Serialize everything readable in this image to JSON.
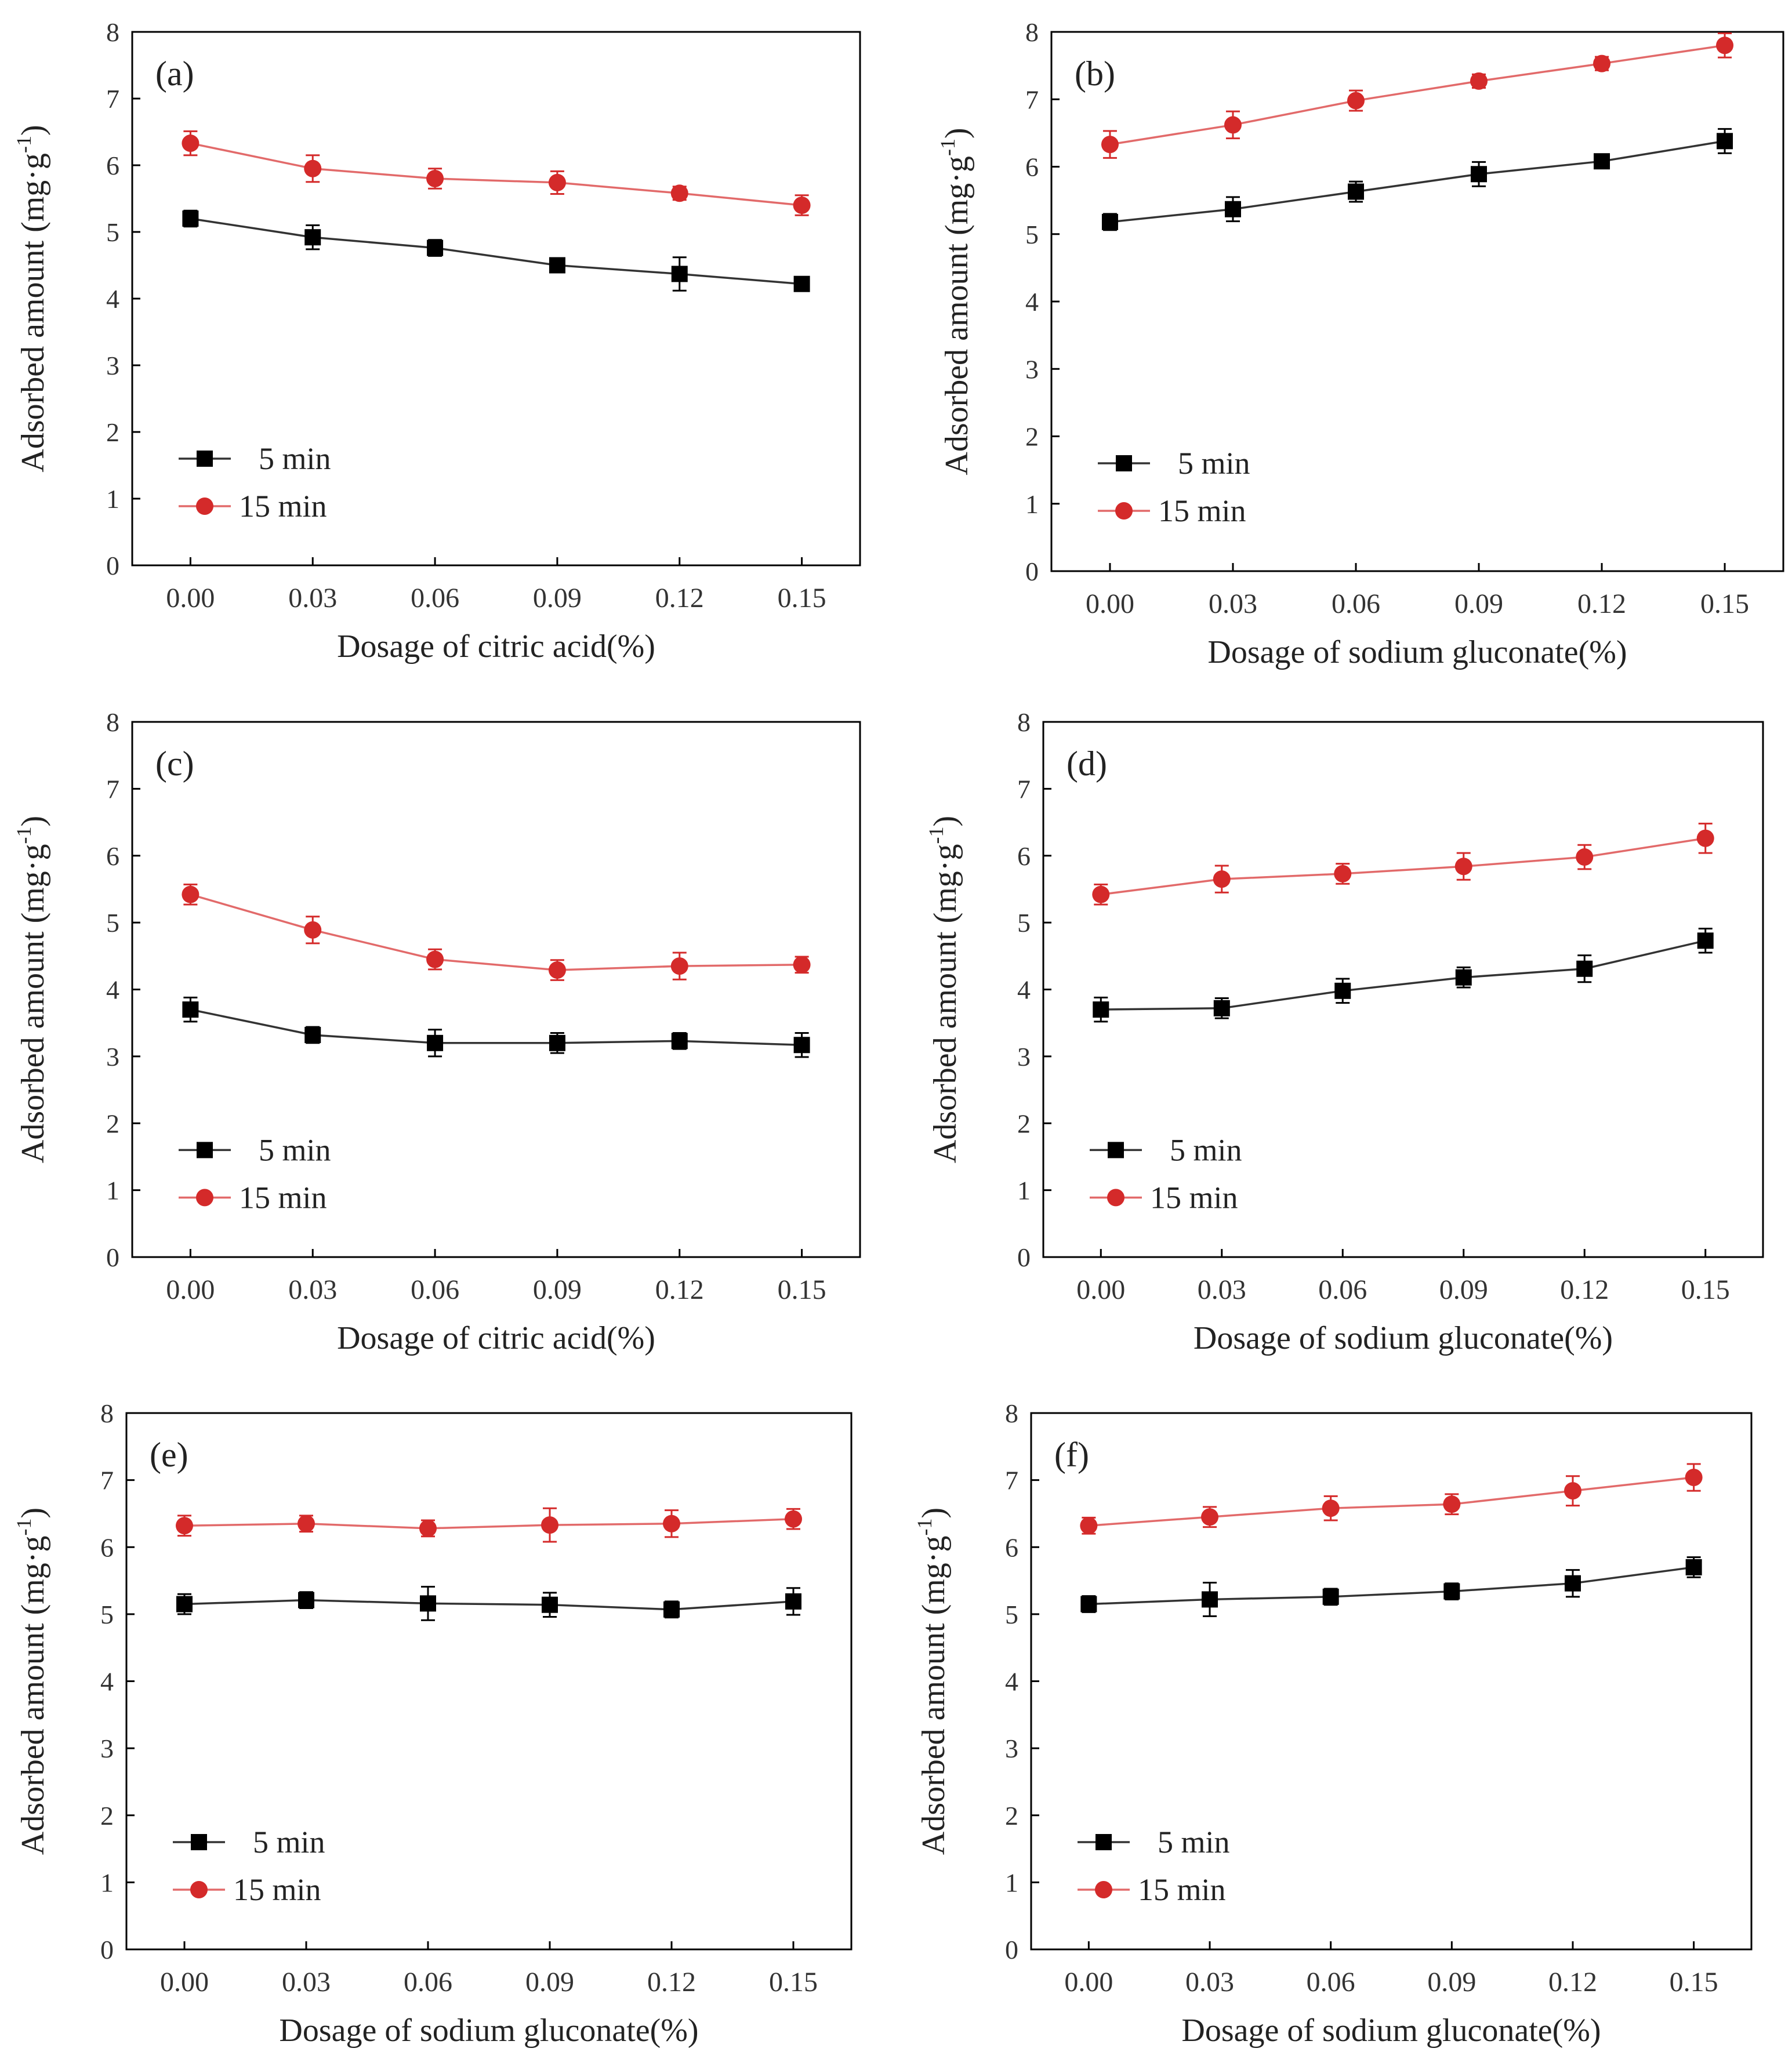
{
  "figure": {
    "legend_placement": "lower-left",
    "colors": {
      "series_5min": "#000000",
      "series_15min": "#d42a2a",
      "axes": "#000000",
      "line_5min": "#333333",
      "line_15min": "#e26a6a"
    }
  },
  "chart_data": [
    {
      "panel": "(a)",
      "type": "line",
      "xlabel": "Dosage of citric acid(%)",
      "ylabel": "Adsorbed amount (mg·g-1)",
      "ylabel_main": "Adsorbed amount (mg·g",
      "ylabel_sup": "-1",
      "ylabel_close": ")",
      "x": [
        "0.00",
        "0.03",
        "0.06",
        "0.09",
        "0.12",
        "0.15"
      ],
      "ylim": [
        0,
        8
      ],
      "yticks": [
        "0",
        "1",
        "2",
        "3",
        "4",
        "5",
        "6",
        "7",
        "8"
      ],
      "series": [
        {
          "name": "5 min",
          "marker": "square",
          "values": [
            5.2,
            4.92,
            4.76,
            4.5,
            4.37,
            4.22
          ],
          "errors": [
            0.12,
            0.18,
            0.12,
            0.08,
            0.25,
            0.1
          ]
        },
        {
          "name": "15 min",
          "marker": "circle",
          "values": [
            6.33,
            5.95,
            5.8,
            5.74,
            5.58,
            5.4
          ],
          "errors": [
            0.18,
            0.2,
            0.15,
            0.17,
            0.1,
            0.15
          ]
        }
      ]
    },
    {
      "panel": "(b)",
      "type": "line",
      "xlabel": "Dosage of sodium gluconate(%)",
      "ylabel": "Adsorbed amount (mg·g-1)",
      "ylabel_main": "Adsorbed amount (mg·g",
      "ylabel_sup": "-1",
      "ylabel_close": ")",
      "x": [
        "0.00",
        "0.03",
        "0.06",
        "0.09",
        "0.12",
        "0.15"
      ],
      "ylim": [
        0,
        8
      ],
      "yticks": [
        "0",
        "1",
        "2",
        "3",
        "4",
        "5",
        "6",
        "7",
        "8"
      ],
      "series": [
        {
          "name": "5 min",
          "marker": "square",
          "values": [
            5.18,
            5.37,
            5.63,
            5.89,
            6.08,
            6.38
          ],
          "errors": [
            0.12,
            0.18,
            0.15,
            0.18,
            0.1,
            0.18
          ]
        },
        {
          "name": "15 min",
          "marker": "circle",
          "values": [
            6.33,
            6.62,
            6.98,
            7.27,
            7.53,
            7.8
          ],
          "errors": [
            0.2,
            0.2,
            0.15,
            0.1,
            0.1,
            0.18
          ]
        }
      ]
    },
    {
      "panel": "(c)",
      "type": "line",
      "xlabel": "Dosage of citric acid(%)",
      "ylabel": "Adsorbed amount (mg·g-1)",
      "ylabel_main": "Adsorbed amount (mg·g",
      "ylabel_sup": "-1",
      "ylabel_close": ")",
      "x": [
        "0.00",
        "0.03",
        "0.06",
        "0.09",
        "0.12",
        "0.15"
      ],
      "ylim": [
        0,
        8
      ],
      "yticks": [
        "0",
        "1",
        "2",
        "3",
        "4",
        "5",
        "6",
        "7",
        "8"
      ],
      "series": [
        {
          "name": "5 min",
          "marker": "square",
          "values": [
            3.7,
            3.32,
            3.2,
            3.2,
            3.23,
            3.17
          ],
          "errors": [
            0.18,
            0.12,
            0.2,
            0.15,
            0.12,
            0.18
          ]
        },
        {
          "name": "15 min",
          "marker": "circle",
          "values": [
            5.42,
            4.89,
            4.45,
            4.29,
            4.35,
            4.37
          ],
          "errors": [
            0.15,
            0.2,
            0.15,
            0.15,
            0.2,
            0.12
          ]
        }
      ]
    },
    {
      "panel": "(d)",
      "type": "line",
      "xlabel": "Dosage of sodium gluconate(%)",
      "ylabel": "Adsorbed amount (mg·g-1)",
      "ylabel_main": "Adsorbed amount (mg·g",
      "ylabel_sup": "-1",
      "ylabel_close": ")",
      "x": [
        "0.00",
        "0.03",
        "0.06",
        "0.09",
        "0.12",
        "0.15"
      ],
      "ylim": [
        0,
        8
      ],
      "yticks": [
        "0",
        "1",
        "2",
        "3",
        "4",
        "5",
        "6",
        "7",
        "8"
      ],
      "series": [
        {
          "name": "5 min",
          "marker": "square",
          "values": [
            3.7,
            3.72,
            3.98,
            4.18,
            4.31,
            4.73
          ],
          "errors": [
            0.18,
            0.15,
            0.18,
            0.15,
            0.2,
            0.18
          ]
        },
        {
          "name": "15 min",
          "marker": "circle",
          "values": [
            5.42,
            5.65,
            5.73,
            5.84,
            5.98,
            6.26
          ],
          "errors": [
            0.15,
            0.2,
            0.15,
            0.2,
            0.18,
            0.22
          ]
        }
      ]
    },
    {
      "panel": "(e)",
      "type": "line",
      "xlabel": "Dosage of sodium gluconate(%)",
      "ylabel": "Adsorbed amount (mg·g-1)",
      "ylabel_main": "Adsorbed amount (mg·g",
      "ylabel_sup": "-1",
      "ylabel_close": ")",
      "x": [
        "0.00",
        "0.03",
        "0.06",
        "0.09",
        "0.12",
        "0.15"
      ],
      "ylim": [
        0,
        8
      ],
      "yticks": [
        "0",
        "1",
        "2",
        "3",
        "4",
        "5",
        "6",
        "7",
        "8"
      ],
      "series": [
        {
          "name": "5 min",
          "marker": "square",
          "values": [
            5.15,
            5.21,
            5.16,
            5.14,
            5.07,
            5.19
          ],
          "errors": [
            0.15,
            0.12,
            0.25,
            0.18,
            0.12,
            0.2
          ]
        },
        {
          "name": "15 min",
          "marker": "circle",
          "values": [
            6.32,
            6.35,
            6.28,
            6.33,
            6.35,
            6.42
          ],
          "errors": [
            0.15,
            0.12,
            0.12,
            0.25,
            0.2,
            0.15
          ]
        }
      ]
    },
    {
      "panel": "(f)",
      "type": "line",
      "xlabel": "Dosage of sodium gluconate(%)",
      "ylabel": "Adsorbed amount (mg·g-1)",
      "ylabel_main": "Adsorbed amount (mg·g",
      "ylabel_sup": "-1",
      "ylabel_close": ")",
      "x": [
        "0.00",
        "0.03",
        "0.06",
        "0.09",
        "0.12",
        "0.15"
      ],
      "ylim": [
        0,
        8
      ],
      "yticks": [
        "0",
        "1",
        "2",
        "3",
        "4",
        "5",
        "6",
        "7",
        "8"
      ],
      "series": [
        {
          "name": "5 min",
          "marker": "square",
          "values": [
            5.15,
            5.22,
            5.26,
            5.34,
            5.46,
            5.7
          ],
          "errors": [
            0.12,
            0.25,
            0.12,
            0.12,
            0.2,
            0.15
          ]
        },
        {
          "name": "15 min",
          "marker": "circle",
          "values": [
            6.32,
            6.45,
            6.58,
            6.64,
            6.84,
            7.04
          ],
          "errors": [
            0.12,
            0.15,
            0.18,
            0.15,
            0.22,
            0.2
          ]
        }
      ]
    }
  ]
}
